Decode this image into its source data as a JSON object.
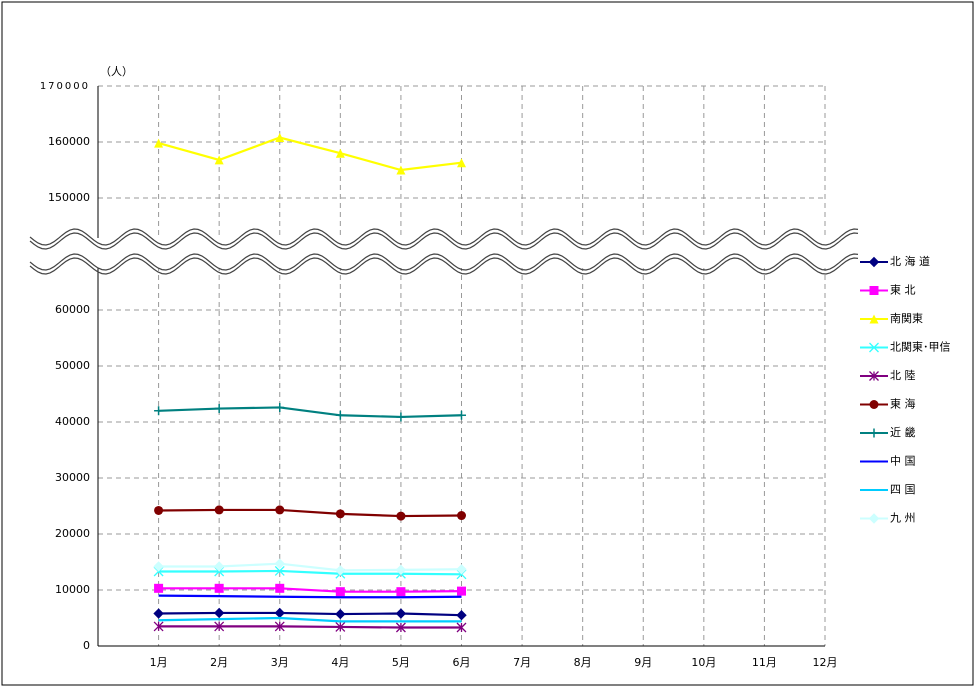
{
  "chart_data": {
    "type": "line",
    "y_unit_label": "（人）",
    "categories": [
      "1月",
      "2月",
      "3月",
      "4月",
      "5月",
      "6月",
      "7月",
      "8月",
      "9月",
      "10月",
      "11月",
      "12月"
    ],
    "ylim": [
      0,
      170000
    ],
    "axis_break": [
      65000,
      145000
    ],
    "yticks": [
      0,
      10000,
      20000,
      30000,
      40000,
      50000,
      60000,
      150000,
      160000,
      170000
    ],
    "grid": true,
    "legend": "right",
    "series": [
      {
        "name": "北 海 道",
        "color": "#000080",
        "marker": "diamond",
        "values": [
          5800,
          5900,
          5900,
          5700,
          5800,
          5500,
          null,
          null,
          null,
          null,
          null,
          null
        ]
      },
      {
        "name": "東 北",
        "color": "#ff00ff",
        "marker": "square",
        "values": [
          10300,
          10300,
          10300,
          9700,
          9700,
          9800,
          null,
          null,
          null,
          null,
          null,
          null
        ]
      },
      {
        "name": "南関東",
        "color": "#ffff00",
        "marker": "triangle",
        "values": [
          159800,
          156800,
          160800,
          158000,
          155000,
          156300,
          null,
          null,
          null,
          null,
          null,
          null
        ]
      },
      {
        "name": "北関東･甲信",
        "color": "#33ffff",
        "marker": "x",
        "values": [
          13300,
          13300,
          13400,
          12900,
          12900,
          12800,
          null,
          null,
          null,
          null,
          null,
          null
        ]
      },
      {
        "name": "北 陸",
        "color": "#800080",
        "marker": "star",
        "values": [
          3500,
          3500,
          3500,
          3400,
          3300,
          3300,
          null,
          null,
          null,
          null,
          null,
          null
        ]
      },
      {
        "name": "東 海",
        "color": "#800000",
        "marker": "circle",
        "values": [
          24200,
          24300,
          24300,
          23600,
          23200,
          23300,
          null,
          null,
          null,
          null,
          null,
          null
        ]
      },
      {
        "name": "近 畿",
        "color": "#008080",
        "marker": "plus",
        "values": [
          42000,
          42400,
          42600,
          41200,
          40900,
          41200,
          null,
          null,
          null,
          null,
          null,
          null
        ]
      },
      {
        "name": "中 国",
        "color": "#0000ff",
        "marker": "none",
        "values": [
          9000,
          8900,
          8800,
          8700,
          8700,
          8800,
          null,
          null,
          null,
          null,
          null,
          null
        ]
      },
      {
        "name": "四 国",
        "color": "#00ccff",
        "marker": "none",
        "values": [
          4600,
          4800,
          5000,
          4400,
          4400,
          4400,
          null,
          null,
          null,
          null,
          null,
          null
        ]
      },
      {
        "name": "九 州",
        "color": "#ccffff",
        "marker": "diamond",
        "values": [
          14200,
          14200,
          14700,
          13500,
          13600,
          13700,
          null,
          null,
          null,
          null,
          null,
          null
        ]
      }
    ]
  }
}
